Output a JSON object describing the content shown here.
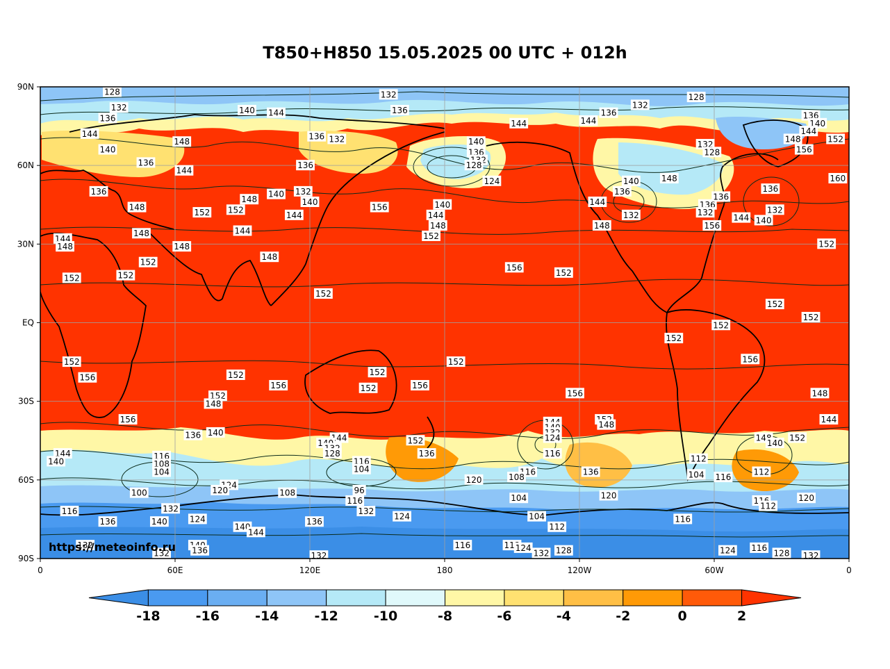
{
  "title": "T850+H850 15.05.2025 00 UTC + 012h",
  "watermark": "https://meteoinfo.ru",
  "map": {
    "lat_ticks": [
      "90N",
      "60N",
      "30N",
      "EQ",
      "30S",
      "60S",
      "90S"
    ],
    "lon_ticks": [
      "0",
      "60E",
      "120E",
      "180",
      "120W",
      "60W",
      "0"
    ],
    "lat_range": [
      -90,
      90
    ],
    "lon_range": [
      0,
      360
    ],
    "gridlines": true
  },
  "colorbar": {
    "ticks": [
      "-18",
      "-16",
      "-14",
      "-12",
      "-10",
      "-8",
      "-6",
      "-4",
      "-2",
      "0",
      "2"
    ],
    "colors": [
      "#3b8ee6",
      "#4a9af0",
      "#6aaef2",
      "#8ec5f7",
      "#b5e9f7",
      "#e0f9fb",
      "#fff7a6",
      "#ffe171",
      "#ffbf45",
      "#ff9a06",
      "#ff5a09",
      "#ff3300"
    ],
    "extend": "both"
  },
  "field_colors": {
    "warm": "#ff3300",
    "warm2": "#ff5a09",
    "orange": "#ff9a06",
    "yellow": "#ffe171",
    "pale": "#fff7a6",
    "cyan": "#b5e9f7",
    "lightblue": "#8ec5f7",
    "blue": "#4a9af0",
    "deepblue": "#3b8ee6"
  },
  "contour_labels": [
    {
      "text": "128",
      "lon": 32,
      "lat": 88
    },
    {
      "text": "132",
      "lon": 155,
      "lat": 87
    },
    {
      "text": "128",
      "lon": 292,
      "lat": 86
    },
    {
      "text": "136",
      "lon": 160,
      "lat": 81
    },
    {
      "text": "140",
      "lon": 92,
      "lat": 81
    },
    {
      "text": "144",
      "lon": 105,
      "lat": 80
    },
    {
      "text": "132",
      "lon": 267,
      "lat": 83
    },
    {
      "text": "136",
      "lon": 253,
      "lat": 80
    },
    {
      "text": "136",
      "lon": 343,
      "lat": 79
    },
    {
      "text": "140",
      "lon": 346,
      "lat": 76
    },
    {
      "text": "144",
      "lon": 342,
      "lat": 73
    },
    {
      "text": "148",
      "lon": 335,
      "lat": 70
    },
    {
      "text": "152",
      "lon": 354,
      "lat": 70
    },
    {
      "text": "156",
      "lon": 340,
      "lat": 66
    },
    {
      "text": "144",
      "lon": 213,
      "lat": 76
    },
    {
      "text": "144",
      "lon": 244,
      "lat": 77
    },
    {
      "text": "132",
      "lon": 35,
      "lat": 82
    },
    {
      "text": "136",
      "lon": 30,
      "lat": 78
    },
    {
      "text": "144",
      "lon": 22,
      "lat": 72
    },
    {
      "text": "148",
      "lon": 63,
      "lat": 69
    },
    {
      "text": "140",
      "lon": 30,
      "lat": 66
    },
    {
      "text": "136",
      "lon": 47,
      "lat": 61
    },
    {
      "text": "144",
      "lon": 64,
      "lat": 58
    },
    {
      "text": "136",
      "lon": 26,
      "lat": 50
    },
    {
      "text": "148",
      "lon": 43,
      "lat": 44
    },
    {
      "text": "148",
      "lon": 45,
      "lat": 34
    },
    {
      "text": "144",
      "lon": 10,
      "lat": 32
    },
    {
      "text": "148",
      "lon": 11,
      "lat": 29
    },
    {
      "text": "148",
      "lon": 63,
      "lat": 29
    },
    {
      "text": "152",
      "lon": 48,
      "lat": 23
    },
    {
      "text": "152",
      "lon": 14,
      "lat": 17
    },
    {
      "text": "152",
      "lon": 38,
      "lat": 18
    },
    {
      "text": "136",
      "lon": 123,
      "lat": 71
    },
    {
      "text": "132",
      "lon": 132,
      "lat": 70
    },
    {
      "text": "136",
      "lon": 118,
      "lat": 60
    },
    {
      "text": "132",
      "lon": 117,
      "lat": 50
    },
    {
      "text": "140",
      "lon": 120,
      "lat": 46
    },
    {
      "text": "148",
      "lon": 93,
      "lat": 47
    },
    {
      "text": "140",
      "lon": 105,
      "lat": 49
    },
    {
      "text": "144",
      "lon": 113,
      "lat": 41
    },
    {
      "text": "152",
      "lon": 72,
      "lat": 42
    },
    {
      "text": "152",
      "lon": 87,
      "lat": 43
    },
    {
      "text": "144",
      "lon": 90,
      "lat": 35
    },
    {
      "text": "148",
      "lon": 102,
      "lat": 25
    },
    {
      "text": "156",
      "lon": 151,
      "lat": 44
    },
    {
      "text": "152",
      "lon": 126,
      "lat": 11
    },
    {
      "text": "140",
      "lon": 194,
      "lat": 69
    },
    {
      "text": "136",
      "lon": 194,
      "lat": 65
    },
    {
      "text": "132",
      "lon": 195,
      "lat": 62
    },
    {
      "text": "128",
      "lon": 193,
      "lat": 60
    },
    {
      "text": "124",
      "lon": 201,
      "lat": 54
    },
    {
      "text": "140",
      "lon": 179,
      "lat": 45
    },
    {
      "text": "144",
      "lon": 176,
      "lat": 41
    },
    {
      "text": "148",
      "lon": 177,
      "lat": 37
    },
    {
      "text": "152",
      "lon": 174,
      "lat": 33
    },
    {
      "text": "156",
      "lon": 211,
      "lat": 21
    },
    {
      "text": "152",
      "lon": 233,
      "lat": 19
    },
    {
      "text": "140",
      "lon": 263,
      "lat": 54
    },
    {
      "text": "136",
      "lon": 259,
      "lat": 50
    },
    {
      "text": "144",
      "lon": 248,
      "lat": 46
    },
    {
      "text": "148",
      "lon": 280,
      "lat": 55
    },
    {
      "text": "132",
      "lon": 263,
      "lat": 41
    },
    {
      "text": "148",
      "lon": 250,
      "lat": 37
    },
    {
      "text": "132",
      "lon": 296,
      "lat": 68
    },
    {
      "text": "128",
      "lon": 299,
      "lat": 65
    },
    {
      "text": "136",
      "lon": 297,
      "lat": 45
    },
    {
      "text": "132",
      "lon": 296,
      "lat": 42
    },
    {
      "text": "136",
      "lon": 303,
      "lat": 48
    },
    {
      "text": "144",
      "lon": 312,
      "lat": 40
    },
    {
      "text": "156",
      "lon": 299,
      "lat": 37
    },
    {
      "text": "136",
      "lon": 325,
      "lat": 51
    },
    {
      "text": "132",
      "lon": 327,
      "lat": 43
    },
    {
      "text": "140",
      "lon": 322,
      "lat": 39
    },
    {
      "text": "160",
      "lon": 355,
      "lat": 55
    },
    {
      "text": "152",
      "lon": 350,
      "lat": 30
    },
    {
      "text": "152",
      "lon": 327,
      "lat": 7
    },
    {
      "text": "152",
      "lon": 343,
      "lat": 2
    },
    {
      "text": "152",
      "lon": 303,
      "lat": -1
    },
    {
      "text": "152",
      "lon": 282,
      "lat": -6
    },
    {
      "text": "156",
      "lon": 316,
      "lat": -14
    },
    {
      "text": "148",
      "lon": 347,
      "lat": -27
    },
    {
      "text": "144",
      "lon": 351,
      "lat": -37
    },
    {
      "text": "152",
      "lon": 14,
      "lat": -15
    },
    {
      "text": "156",
      "lon": 21,
      "lat": -21
    },
    {
      "text": "152",
      "lon": 87,
      "lat": -20
    },
    {
      "text": "156",
      "lon": 106,
      "lat": -24
    },
    {
      "text": "152",
      "lon": 79,
      "lat": -28
    },
    {
      "text": "148",
      "lon": 77,
      "lat": -31
    },
    {
      "text": "156",
      "lon": 39,
      "lat": -37
    },
    {
      "text": "140",
      "lon": 78,
      "lat": -42
    },
    {
      "text": "136",
      "lon": 68,
      "lat": -43
    },
    {
      "text": "144",
      "lon": 10,
      "lat": -50
    },
    {
      "text": "140",
      "lon": 7,
      "lat": -53
    },
    {
      "text": "116",
      "lon": 54,
      "lat": -51
    },
    {
      "text": "108",
      "lon": 54,
      "lat": -54
    },
    {
      "text": "104",
      "lon": 54,
      "lat": -57
    },
    {
      "text": "100",
      "lon": 44,
      "lat": -65
    },
    {
      "text": "124",
      "lon": 84,
      "lat": -62
    },
    {
      "text": "120",
      "lon": 80,
      "lat": -64
    },
    {
      "text": "116",
      "lon": 13,
      "lat": -72
    },
    {
      "text": "136",
      "lon": 30,
      "lat": -76
    },
    {
      "text": "140",
      "lon": 53,
      "lat": -76
    },
    {
      "text": "124",
      "lon": 70,
      "lat": -75
    },
    {
      "text": "132",
      "lon": 58,
      "lat": -71
    },
    {
      "text": "140",
      "lon": 90,
      "lat": -78
    },
    {
      "text": "144",
      "lon": 96,
      "lat": -80
    },
    {
      "text": "108",
      "lon": 110,
      "lat": -65
    },
    {
      "text": "136",
      "lon": 122,
      "lat": -76
    },
    {
      "text": "140",
      "lon": 70,
      "lat": -85
    },
    {
      "text": "136",
      "lon": 71,
      "lat": -87
    },
    {
      "text": "132",
      "lon": 54,
      "lat": -88
    },
    {
      "text": "132",
      "lon": 20,
      "lat": -85
    },
    {
      "text": "152",
      "lon": 150,
      "lat": -19
    },
    {
      "text": "152",
      "lon": 146,
      "lat": -25
    },
    {
      "text": "156",
      "lon": 169,
      "lat": -24
    },
    {
      "text": "144",
      "lon": 133,
      "lat": -44
    },
    {
      "text": "140",
      "lon": 127,
      "lat": -46
    },
    {
      "text": "132",
      "lon": 130,
      "lat": -48
    },
    {
      "text": "128",
      "lon": 130,
      "lat": -50
    },
    {
      "text": "116",
      "lon": 143,
      "lat": -53
    },
    {
      "text": "104",
      "lon": 143,
      "lat": -56
    },
    {
      "text": "96",
      "lon": 142,
      "lat": -64
    },
    {
      "text": "116",
      "lon": 140,
      "lat": -68
    },
    {
      "text": "132",
      "lon": 145,
      "lat": -72
    },
    {
      "text": "124",
      "lon": 161,
      "lat": -74
    },
    {
      "text": "152",
      "lon": 167,
      "lat": -45
    },
    {
      "text": "136",
      "lon": 172,
      "lat": -50
    },
    {
      "text": "120",
      "lon": 193,
      "lat": -60
    },
    {
      "text": "152",
      "lon": 185,
      "lat": -15
    },
    {
      "text": "144",
      "lon": 228,
      "lat": -38
    },
    {
      "text": "140",
      "lon": 228,
      "lat": -40
    },
    {
      "text": "132",
      "lon": 228,
      "lat": -42
    },
    {
      "text": "124",
      "lon": 228,
      "lat": -44
    },
    {
      "text": "116",
      "lon": 228,
      "lat": -50
    },
    {
      "text": "116",
      "lon": 217,
      "lat": -57
    },
    {
      "text": "108",
      "lon": 212,
      "lat": -59
    },
    {
      "text": "104",
      "lon": 213,
      "lat": -67
    },
    {
      "text": "104",
      "lon": 221,
      "lat": -74
    },
    {
      "text": "112",
      "lon": 230,
      "lat": -78
    },
    {
      "text": "116",
      "lon": 188,
      "lat": -85
    },
    {
      "text": "112",
      "lon": 210,
      "lat": -85
    },
    {
      "text": "124",
      "lon": 215,
      "lat": -86
    },
    {
      "text": "132",
      "lon": 223,
      "lat": -88
    },
    {
      "text": "128",
      "lon": 233,
      "lat": -87
    },
    {
      "text": "156",
      "lon": 238,
      "lat": -27
    },
    {
      "text": "152",
      "lon": 251,
      "lat": -37
    },
    {
      "text": "148",
      "lon": 252,
      "lat": -39
    },
    {
      "text": "136",
      "lon": 245,
      "lat": -57
    },
    {
      "text": "120",
      "lon": 253,
      "lat": -66
    },
    {
      "text": "112",
      "lon": 293,
      "lat": -52
    },
    {
      "text": "104",
      "lon": 292,
      "lat": -58
    },
    {
      "text": "116",
      "lon": 304,
      "lat": -59
    },
    {
      "text": "116",
      "lon": 286,
      "lat": -75
    },
    {
      "text": "148",
      "lon": 322,
      "lat": -44
    },
    {
      "text": "140",
      "lon": 327,
      "lat": -46
    },
    {
      "text": "152",
      "lon": 337,
      "lat": -44
    },
    {
      "text": "112",
      "lon": 321,
      "lat": -57
    },
    {
      "text": "116",
      "lon": 321,
      "lat": -68
    },
    {
      "text": "112",
      "lon": 324,
      "lat": -70
    },
    {
      "text": "120",
      "lon": 341,
      "lat": -67
    },
    {
      "text": "116",
      "lon": 320,
      "lat": -86
    },
    {
      "text": "124",
      "lon": 306,
      "lat": -87
    },
    {
      "text": "128",
      "lon": 330,
      "lat": -88
    },
    {
      "text": "132",
      "lon": 343,
      "lat": -89
    },
    {
      "text": "132",
      "lon": 124,
      "lat": -89
    }
  ]
}
